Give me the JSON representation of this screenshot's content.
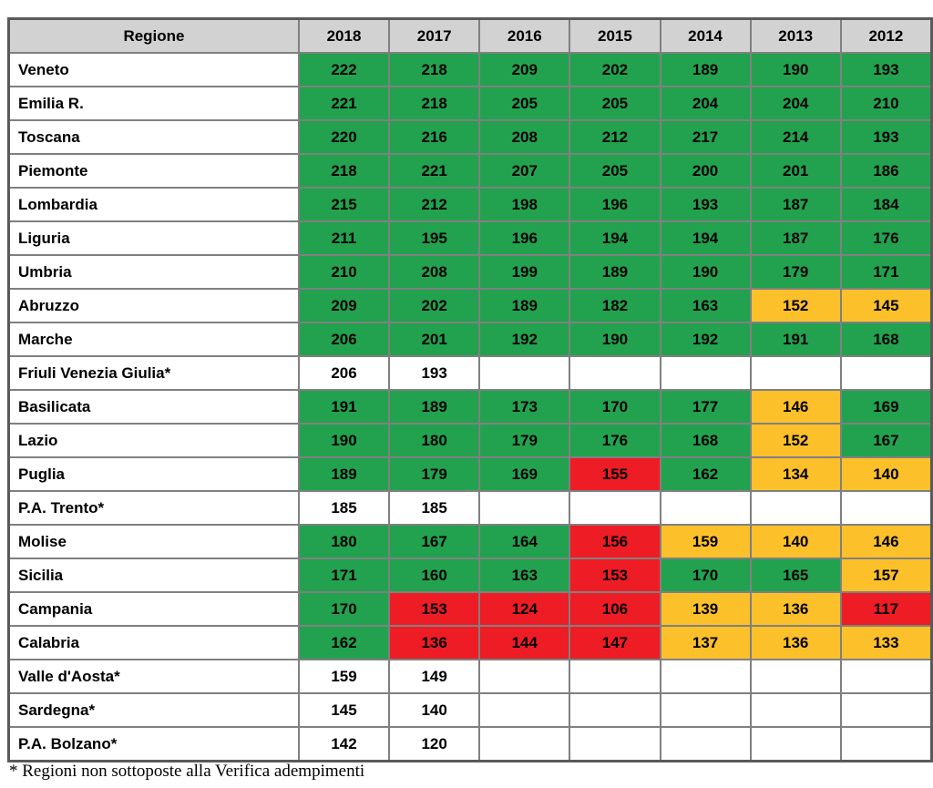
{
  "table": {
    "header": {
      "region_label": "Regione",
      "years": [
        "2018",
        "2017",
        "2016",
        "2015",
        "2014",
        "2013",
        "2012"
      ]
    },
    "rows": [
      {
        "region": "Veneto",
        "values": [
          "222",
          "218",
          "209",
          "202",
          "189",
          "190",
          "193"
        ],
        "colors": [
          "green",
          "green",
          "green",
          "green",
          "green",
          "green",
          "green"
        ]
      },
      {
        "region": "Emilia R.",
        "values": [
          "221",
          "218",
          "205",
          "205",
          "204",
          "204",
          "210"
        ],
        "colors": [
          "green",
          "green",
          "green",
          "green",
          "green",
          "green",
          "green"
        ]
      },
      {
        "region": "Toscana",
        "values": [
          "220",
          "216",
          "208",
          "212",
          "217",
          "214",
          "193"
        ],
        "colors": [
          "green",
          "green",
          "green",
          "green",
          "green",
          "green",
          "green"
        ]
      },
      {
        "region": "Piemonte",
        "values": [
          "218",
          "221",
          "207",
          "205",
          "200",
          "201",
          "186"
        ],
        "colors": [
          "green",
          "green",
          "green",
          "green",
          "green",
          "green",
          "green"
        ]
      },
      {
        "region": "Lombardia",
        "values": [
          "215",
          "212",
          "198",
          "196",
          "193",
          "187",
          "184"
        ],
        "colors": [
          "green",
          "green",
          "green",
          "green",
          "green",
          "green",
          "green"
        ]
      },
      {
        "region": "Liguria",
        "values": [
          "211",
          "195",
          "196",
          "194",
          "194",
          "187",
          "176"
        ],
        "colors": [
          "green",
          "green",
          "green",
          "green",
          "green",
          "green",
          "green"
        ]
      },
      {
        "region": "Umbria",
        "values": [
          "210",
          "208",
          "199",
          "189",
          "190",
          "179",
          "171"
        ],
        "colors": [
          "green",
          "green",
          "green",
          "green",
          "green",
          "green",
          "green"
        ]
      },
      {
        "region": "Abruzzo",
        "values": [
          "209",
          "202",
          "189",
          "182",
          "163",
          "152",
          "145"
        ],
        "colors": [
          "green",
          "green",
          "green",
          "green",
          "green",
          "orange",
          "orange"
        ]
      },
      {
        "region": "Marche",
        "values": [
          "206",
          "201",
          "192",
          "190",
          "192",
          "191",
          "168"
        ],
        "colors": [
          "green",
          "green",
          "green",
          "green",
          "green",
          "green",
          "green"
        ]
      },
      {
        "region": "Friuli Venezia Giulia*",
        "values": [
          "206",
          "193",
          "",
          "",
          "",
          "",
          ""
        ],
        "colors": [
          "white",
          "white",
          "white",
          "white",
          "white",
          "white",
          "white"
        ]
      },
      {
        "region": "Basilicata",
        "values": [
          "191",
          "189",
          "173",
          "170",
          "177",
          "146",
          "169"
        ],
        "colors": [
          "green",
          "green",
          "green",
          "green",
          "green",
          "orange",
          "green"
        ]
      },
      {
        "region": "Lazio",
        "values": [
          "190",
          "180",
          "179",
          "176",
          "168",
          "152",
          "167"
        ],
        "colors": [
          "green",
          "green",
          "green",
          "green",
          "green",
          "orange",
          "green"
        ]
      },
      {
        "region": "Puglia",
        "values": [
          "189",
          "179",
          "169",
          "155",
          "162",
          "134",
          "140"
        ],
        "colors": [
          "green",
          "green",
          "green",
          "red",
          "green",
          "orange",
          "orange"
        ]
      },
      {
        "region": "P.A. Trento*",
        "values": [
          "185",
          "185",
          "",
          "",
          "",
          "",
          ""
        ],
        "colors": [
          "white",
          "white",
          "white",
          "white",
          "white",
          "white",
          "white"
        ]
      },
      {
        "region": "Molise",
        "values": [
          "180",
          "167",
          "164",
          "156",
          "159",
          "140",
          "146"
        ],
        "colors": [
          "green",
          "green",
          "green",
          "red",
          "orange",
          "orange",
          "orange"
        ]
      },
      {
        "region": "Sicilia",
        "values": [
          "171",
          "160",
          "163",
          "153",
          "170",
          "165",
          "157"
        ],
        "colors": [
          "green",
          "green",
          "green",
          "red",
          "green",
          "green",
          "orange"
        ]
      },
      {
        "region": "Campania",
        "values": [
          "170",
          "153",
          "124",
          "106",
          "139",
          "136",
          "117"
        ],
        "colors": [
          "green",
          "red",
          "red",
          "red",
          "orange",
          "orange",
          "red"
        ]
      },
      {
        "region": "Calabria",
        "values": [
          "162",
          "136",
          "144",
          "147",
          "137",
          "136",
          "133"
        ],
        "colors": [
          "green",
          "red",
          "red",
          "red",
          "orange",
          "orange",
          "orange"
        ]
      },
      {
        "region": "Valle d'Aosta*",
        "values": [
          "159",
          "149",
          "",
          "",
          "",
          "",
          ""
        ],
        "colors": [
          "white",
          "white",
          "white",
          "white",
          "white",
          "white",
          "white"
        ]
      },
      {
        "region": "Sardegna*",
        "values": [
          "145",
          "140",
          "",
          "",
          "",
          "",
          ""
        ],
        "colors": [
          "white",
          "white",
          "white",
          "white",
          "white",
          "white",
          "white"
        ]
      },
      {
        "region": "P.A. Bolzano*",
        "values": [
          "142",
          "120",
          "",
          "",
          "",
          "",
          ""
        ],
        "colors": [
          "white",
          "white",
          "white",
          "white",
          "white",
          "white",
          "white"
        ]
      }
    ]
  },
  "footnote": "* Regioni non sottoposte alla Verifica adempimenti",
  "palette": {
    "green": "#22a24f",
    "orange": "#fcc02b",
    "red": "#ee1c24",
    "white": "#ffffff",
    "header_bg": "#d2d2d2",
    "border": "#808080",
    "outer_border": "#5a5a5a"
  }
}
